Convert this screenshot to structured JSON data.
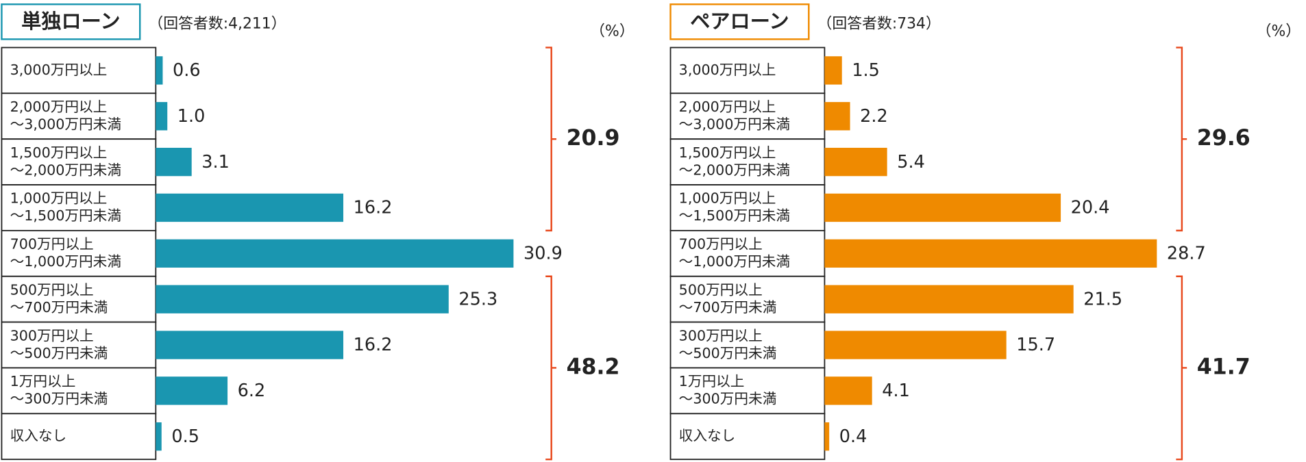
{
  "chart_data": [
    {
      "type": "bar",
      "title": "単独ローン",
      "subtitle": "（回答者数:4,211）",
      "unit": "（%）",
      "color": "#1a96b0",
      "group_color": "#e8481c",
      "categories": [
        "3,000万円以上",
        "2,000万円以上\n～3,000万円未満",
        "1,500万円以上\n～2,000万円未満",
        "1,000万円以上\n～1,500万円未満",
        "700万円以上\n～1,000万円未満",
        "500万円以上\n～700万円未満",
        "300万円以上\n～500万円未満",
        "1万円以上\n～300万円未満",
        "収入なし"
      ],
      "values": [
        0.6,
        1.0,
        3.1,
        16.2,
        30.9,
        25.3,
        16.2,
        6.2,
        0.5
      ],
      "value_labels": [
        "0.6",
        "1.0",
        "3.1",
        "16.2",
        "30.9",
        "25.3",
        "16.2",
        "6.2",
        "0.5"
      ],
      "group_totals": [
        20.9,
        48.2
      ]
    },
    {
      "type": "bar",
      "title": "ペアローン",
      "subtitle": "（回答者数:734）",
      "unit": "（%）",
      "color": "#ef8a00",
      "group_color": "#e8481c",
      "categories": [
        "3,000万円以上",
        "2,000万円以上\n～3,000万円未満",
        "1,500万円以上\n～2,000万円未満",
        "1,000万円以上\n～1,500万円未満",
        "700万円以上\n～1,000万円未満",
        "500万円以上\n～700万円未満",
        "300万円以上\n～500万円未満",
        "1万円以上\n～300万円未満",
        "収入なし"
      ],
      "values": [
        1.5,
        2.2,
        5.4,
        20.4,
        28.7,
        21.5,
        15.7,
        4.1,
        0.4
      ],
      "value_labels": [
        "1.5",
        "2.2",
        "5.4",
        "20.4",
        "28.7",
        "21.5",
        "15.7",
        "4.1",
        "0.4"
      ],
      "group_totals": [
        29.6,
        41.7
      ]
    }
  ]
}
